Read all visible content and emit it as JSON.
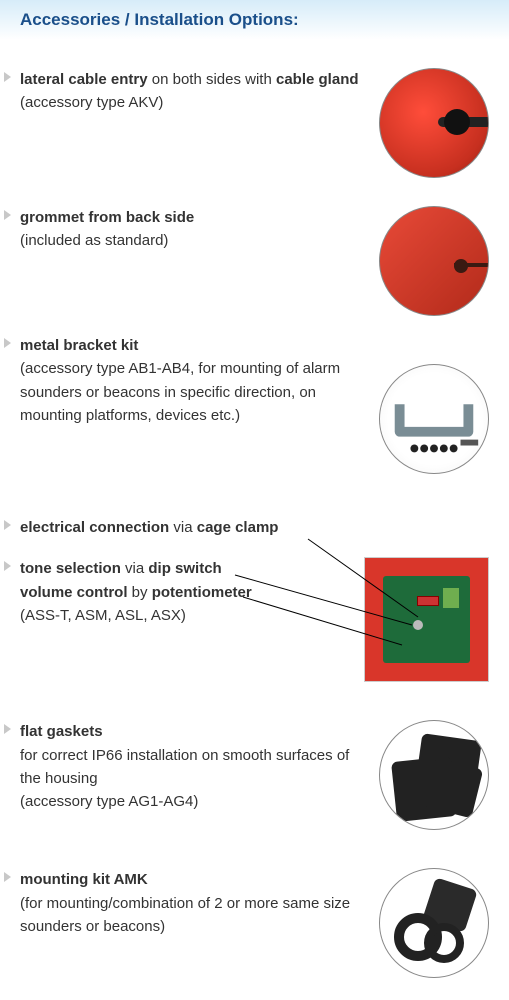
{
  "header": "Accessories / Installation Options:",
  "items": {
    "lateral": {
      "html": "<b>lateral cable entry</b> on both sides with <b>cable gland</b> (accessory type AKV)"
    },
    "grommet": {
      "html": "<b>grommet from back side</b><br>(included as standard)"
    },
    "bracket": {
      "html": "<b>metal bracket kit</b><br>(accessory type AB1-AB4, for mounting of alarm sounders or beacons in specific direction, on mounting platforms, devices etc.)"
    },
    "electrical": {
      "html": "<b>electrical connection</b> via <b>cage clamp</b>"
    },
    "tone": {
      "html": "<b>tone selection</b> via <b>dip switch</b><br><b>volume control</b> by <b>potentiometer</b><br>(ASS-T, ASM, ASL, ASX)"
    },
    "gaskets": {
      "html": "<b>flat gaskets</b><br>for correct IP66 installation on smooth surfaces of the housing<br>(accessory type AG1-AG4)"
    },
    "amk": {
      "html": "<b>mounting kit AMK</b><br>(for mounting/combination of 2 or more same size sounders or beacons)"
    }
  },
  "colors": {
    "header_text": "#1a4f8a",
    "header_bg_top": "#d6ecf9",
    "body_text": "#333333",
    "bullet": "#c8c8c8",
    "device_red": "#d9362a",
    "pcb_green": "#1e6b3a",
    "gasket_black": "#222222"
  }
}
